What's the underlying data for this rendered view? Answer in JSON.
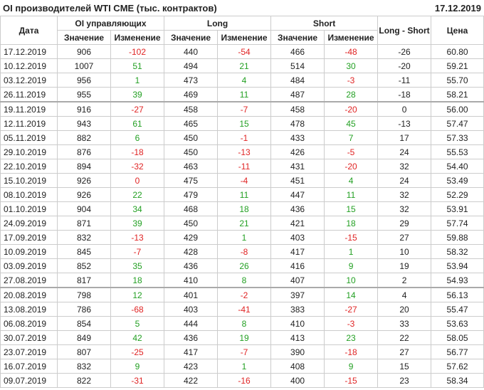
{
  "header": {
    "title": "OI производителей WTI CME (тыс. контрактов)",
    "date": "17.12.2019"
  },
  "table": {
    "groups": [
      "Дата",
      "OI управляющих",
      "Long",
      "Short",
      "Long - Short",
      "Цена"
    ],
    "subcolumns": [
      "Значение",
      "Изменение",
      "Значение",
      "Изменение",
      "Значение",
      "Изменение"
    ],
    "rows": [
      [
        "17.12.2019",
        "906",
        "-102",
        "440",
        "-54",
        "466",
        "-48",
        "-26",
        "60.80"
      ],
      [
        "10.12.2019",
        "1007",
        "51",
        "494",
        "21",
        "514",
        "30",
        "-20",
        "59.21"
      ],
      [
        "03.12.2019",
        "956",
        "1",
        "473",
        "4",
        "484",
        "-3",
        "-11",
        "55.70"
      ],
      [
        "26.11.2019",
        "955",
        "39",
        "469",
        "11",
        "487",
        "28",
        "-18",
        "58.21"
      ],
      [
        "19.11.2019",
        "916",
        "-27",
        "458",
        "-7",
        "458",
        "-20",
        "0",
        "56.00"
      ],
      [
        "12.11.2019",
        "943",
        "61",
        "465",
        "15",
        "478",
        "45",
        "-13",
        "57.47"
      ],
      [
        "05.11.2019",
        "882",
        "6",
        "450",
        "-1",
        "433",
        "7",
        "17",
        "57.33"
      ],
      [
        "29.10.2019",
        "876",
        "-18",
        "450",
        "-13",
        "426",
        "-5",
        "24",
        "55.53"
      ],
      [
        "22.10.2019",
        "894",
        "-32",
        "463",
        "-11",
        "431",
        "-20",
        "32",
        "54.40"
      ],
      [
        "15.10.2019",
        "926",
        "0",
        "475",
        "-4",
        "451",
        "4",
        "24",
        "53.49"
      ],
      [
        "08.10.2019",
        "926",
        "22",
        "479",
        "11",
        "447",
        "11",
        "32",
        "52.29"
      ],
      [
        "01.10.2019",
        "904",
        "34",
        "468",
        "18",
        "436",
        "15",
        "32",
        "53.91"
      ],
      [
        "24.09.2019",
        "871",
        "39",
        "450",
        "21",
        "421",
        "18",
        "29",
        "57.74"
      ],
      [
        "17.09.2019",
        "832",
        "-13",
        "429",
        "1",
        "403",
        "-15",
        "27",
        "59.88"
      ],
      [
        "10.09.2019",
        "845",
        "-7",
        "428",
        "-8",
        "417",
        "1",
        "10",
        "58.32"
      ],
      [
        "03.09.2019",
        "852",
        "35",
        "436",
        "26",
        "416",
        "9",
        "19",
        "53.94"
      ],
      [
        "27.08.2019",
        "817",
        "18",
        "410",
        "8",
        "407",
        "10",
        "2",
        "54.93"
      ],
      [
        "20.08.2019",
        "798",
        "12",
        "401",
        "-2",
        "397",
        "14",
        "4",
        "56.13"
      ],
      [
        "13.08.2019",
        "786",
        "-68",
        "403",
        "-41",
        "383",
        "-27",
        "20",
        "55.47"
      ],
      [
        "06.08.2019",
        "854",
        "5",
        "444",
        "8",
        "410",
        "-3",
        "33",
        "53.63"
      ],
      [
        "30.07.2019",
        "849",
        "42",
        "436",
        "19",
        "413",
        "23",
        "22",
        "58.05"
      ],
      [
        "23.07.2019",
        "807",
        "-25",
        "417",
        "-7",
        "390",
        "-18",
        "27",
        "56.77"
      ],
      [
        "16.07.2019",
        "832",
        "9",
        "423",
        "1",
        "408",
        "9",
        "15",
        "57.62"
      ],
      [
        "09.07.2019",
        "822",
        "-31",
        "422",
        "-16",
        "400",
        "-15",
        "23",
        "58.34"
      ]
    ]
  }
}
